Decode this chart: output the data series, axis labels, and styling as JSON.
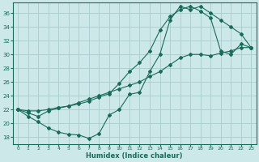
{
  "xlabel": "Humidex (Indice chaleur)",
  "bg_color": "#cce8e8",
  "grid_color": "#aacccc",
  "line_color": "#1a6b5a",
  "xlim": [
    -0.5,
    23.5
  ],
  "ylim": [
    17.0,
    37.5
  ],
  "yticks": [
    18,
    20,
    22,
    24,
    26,
    28,
    30,
    32,
    34,
    36
  ],
  "xticks": [
    0,
    1,
    2,
    3,
    4,
    5,
    6,
    7,
    8,
    9,
    10,
    11,
    12,
    13,
    14,
    15,
    16,
    17,
    18,
    19,
    20,
    21,
    22,
    23
  ],
  "line1_x": [
    0,
    1,
    2,
    3,
    4,
    5,
    6,
    7,
    8,
    9,
    10,
    11,
    12,
    13,
    14,
    15,
    16,
    17,
    18,
    19,
    20,
    21,
    22,
    23
  ],
  "line1_y": [
    22.0,
    21.5,
    21.0,
    21.8,
    22.2,
    22.5,
    23.0,
    23.5,
    24.0,
    24.5,
    25.0,
    25.5,
    26.0,
    26.8,
    27.5,
    28.5,
    29.5,
    30.0,
    30.0,
    29.8,
    30.2,
    30.5,
    31.0,
    31.0
  ],
  "line2_x": [
    0,
    1,
    2,
    3,
    4,
    5,
    6,
    7,
    8,
    9,
    10,
    11,
    12,
    13,
    14,
    15,
    16,
    17,
    18,
    19,
    20,
    21,
    22,
    23
  ],
  "line2_y": [
    22.0,
    21.0,
    20.2,
    19.3,
    18.7,
    18.4,
    18.3,
    17.8,
    18.5,
    21.2,
    22.0,
    24.2,
    24.5,
    27.5,
    30.0,
    35.0,
    37.0,
    36.5,
    37.0,
    36.0,
    35.0,
    34.0,
    33.0,
    31.0
  ],
  "line3_x": [
    0,
    1,
    2,
    3,
    4,
    5,
    6,
    7,
    8,
    9,
    10,
    11,
    12,
    13,
    14,
    15,
    16,
    17,
    18,
    19,
    20,
    21,
    22,
    23
  ],
  "line3_y": [
    22.0,
    21.8,
    21.8,
    22.0,
    22.3,
    22.5,
    22.8,
    23.2,
    23.8,
    24.3,
    25.8,
    27.5,
    28.8,
    30.5,
    33.5,
    35.5,
    36.5,
    37.0,
    36.3,
    35.3,
    30.5,
    30.0,
    31.5,
    31.0
  ]
}
